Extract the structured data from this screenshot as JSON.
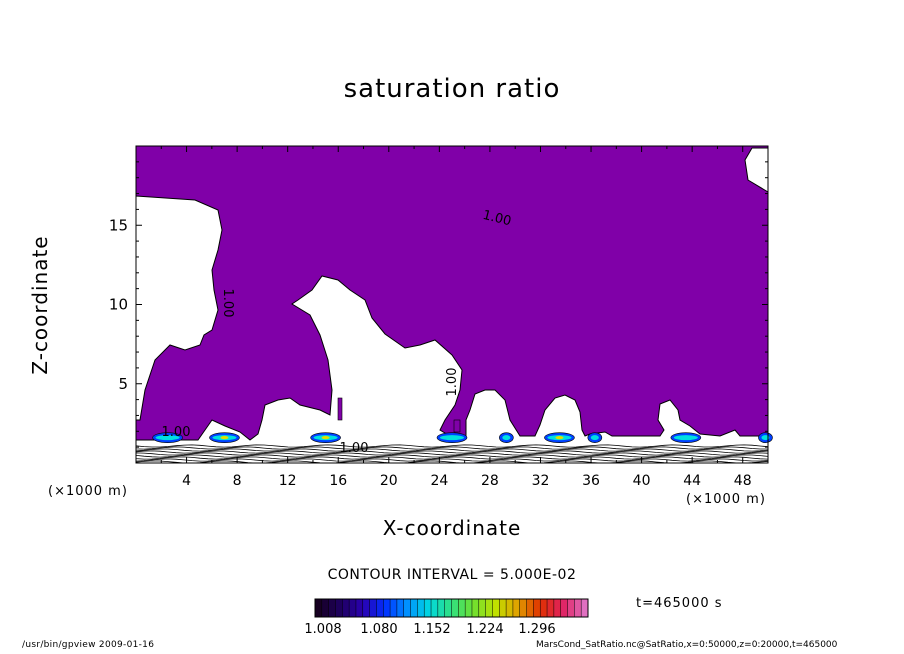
{
  "chart_data": {
    "type": "contour",
    "title": "saturation ratio",
    "xlabel": "X-coordinate",
    "ylabel": "Z-coordinate",
    "x_unit": "(×1000 m)",
    "xlim": [
      0,
      50
    ],
    "ylim": [
      0,
      20
    ],
    "x_ticks": [
      4,
      8,
      12,
      16,
      20,
      24,
      28,
      32,
      36,
      40,
      44,
      48
    ],
    "y_ticks": [
      5,
      10,
      15
    ],
    "contour_interval_text": "CONTOUR INTERVAL = 5.000E-02",
    "contour_labels": [
      "1.00",
      "1.00",
      "1.00",
      "1.00",
      "1.00"
    ],
    "colorbar": {
      "ticks": [
        "1.008",
        "1.080",
        "1.152",
        "1.224",
        "1.296"
      ],
      "colors": [
        "#170022",
        "#1e0060",
        "#2a00b0",
        "#0030ff",
        "#0090ff",
        "#00d8e0",
        "#30e080",
        "#70e030",
        "#c0e000",
        "#e0a000",
        "#e03000",
        "#e02060",
        "#e070c0"
      ]
    },
    "fill_color": "#8000a8",
    "time_text": "t=465000 s"
  },
  "footer": {
    "left": "/usr/bin/gpview  2009-01-16",
    "right": "MarsCond_SatRatio.nc@SatRatio,x=0:50000,z=0:20000,t=465000"
  }
}
